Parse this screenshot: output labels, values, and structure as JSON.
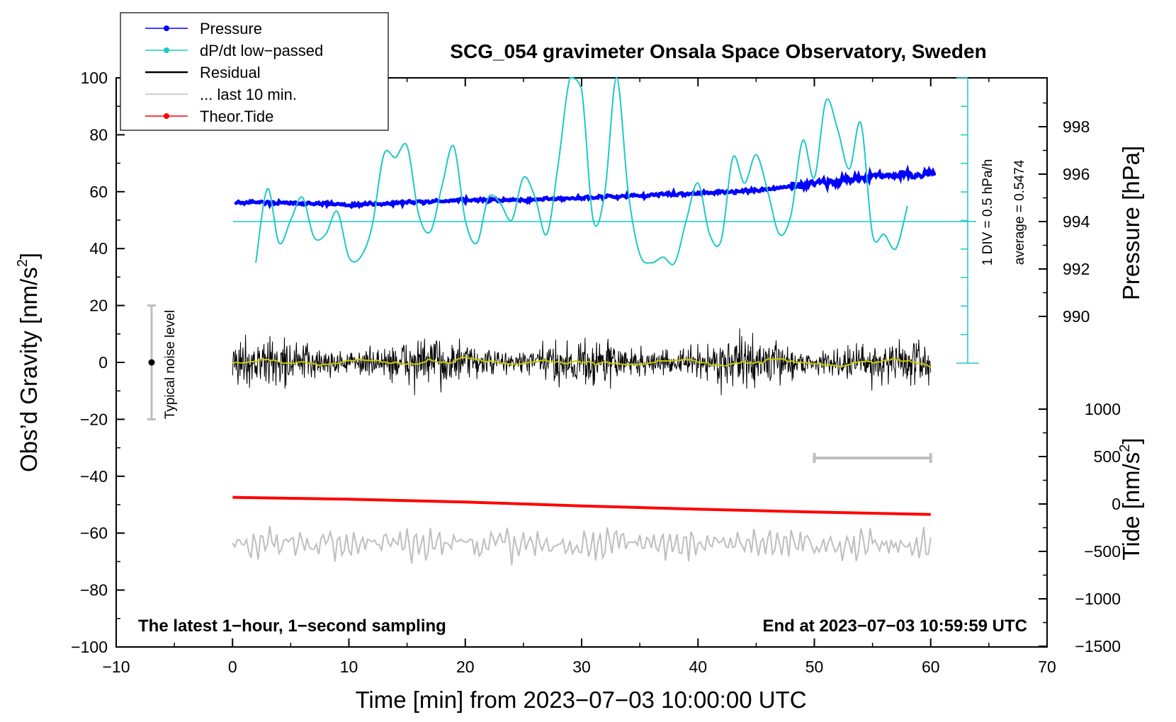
{
  "chart_data": {
    "type": "line",
    "title": "SCG_054 gravimeter Onsala Space Observatory, Sweden",
    "xlabel": "Time [min] from 2023−07−03 10:00:00 UTC",
    "ylabel": "Obs’d Gravity [nm/s",
    "ylabel_sup": "2",
    "ylabel_close": "]",
    "xlim": [
      -10,
      70
    ],
    "ylim": [
      -100,
      100
    ],
    "x_ticks": [
      "−10",
      "0",
      "10",
      "20",
      "30",
      "40",
      "50",
      "60",
      "70"
    ],
    "y_ticks": [
      "−100",
      "−80",
      "−60",
      "−40",
      "−20",
      "0",
      "20",
      "40",
      "60",
      "80",
      "100"
    ],
    "right_pressure_axis": {
      "label": "Pressure [hPa]",
      "ticks": [
        "990",
        "992",
        "994",
        "996",
        "998"
      ]
    },
    "right_tide_axis": {
      "label": "Tide [nm/s",
      "label_sup": "2",
      "label_close": "]",
      "ticks": [
        "−1500",
        "−1000",
        "−500",
        "0",
        "500",
        "1000"
      ]
    },
    "legend": [
      {
        "name": "Pressure",
        "color": "#0000ff",
        "marker": true
      },
      {
        "name": "dP/dt low−passed",
        "color": "#1ec8c8",
        "marker": true
      },
      {
        "name": "Residual",
        "color": "#000000",
        "marker": false
      },
      {
        "name": "... last 10 min.",
        "color": "#bebebe",
        "marker": false
      },
      {
        "name": "Theor.Tide",
        "color": "#ff0000",
        "marker": true
      }
    ],
    "series": [
      {
        "name": "dP/dt low−passed",
        "color": "#1ec8c8",
        "x": [
          2,
          3,
          4,
          5,
          6,
          7,
          8,
          9,
          10,
          11,
          12,
          13,
          14,
          15,
          16,
          17,
          18,
          19,
          20,
          21,
          22,
          23,
          24,
          25,
          26,
          27,
          28,
          29,
          30,
          31,
          32,
          33,
          34,
          35,
          36,
          37,
          38,
          39,
          40,
          41,
          42,
          43,
          44,
          45,
          46,
          47,
          48,
          49,
          50,
          51,
          52,
          53,
          54,
          55,
          56,
          57,
          58
        ],
        "y": [
          35,
          61,
          42,
          50,
          58,
          44,
          45,
          53,
          37,
          37,
          48,
          73,
          72,
          76,
          52,
          46,
          62,
          76,
          50,
          42,
          58,
          56,
          50,
          65,
          58,
          45,
          70,
          100,
          96,
          50,
          60,
          100,
          60,
          38,
          35,
          37,
          35,
          50,
          63,
          45,
          43,
          72,
          63,
          73,
          60,
          45,
          52,
          78,
          65,
          92,
          82,
          68,
          84,
          45,
          45,
          40,
          55
        ]
      },
      {
        "name": "Pressure",
        "color": "#0000ff",
        "x": [
          0,
          5,
          10,
          15,
          20,
          25,
          30,
          35,
          40,
          45,
          50,
          55,
          60
        ],
        "y": [
          994.8,
          994.8,
          994.7,
          994.8,
          994.9,
          994.9,
          995.0,
          995.1,
          995.2,
          995.3,
          995.6,
          995.9,
          996.0
        ]
      },
      {
        "name": "Residual",
        "color": "#000000",
        "x": [
          0,
          60
        ],
        "y": [
          0,
          0
        ]
      },
      {
        "name": "Theor.Tide",
        "color": "#ff0000",
        "x": [
          0,
          10,
          20,
          30,
          40,
          50,
          60
        ],
        "y": [
          70,
          50,
          20,
          -20,
          -55,
          -85,
          -110
        ]
      }
    ],
    "annotations": {
      "noise_label": "Typical noise level",
      "noise_range": [
        -20,
        20
      ],
      "div_note": "1 DIV = 0.5 hPa/h",
      "average_note": "average = 0.5474",
      "last10_range": [
        50,
        60
      ],
      "bottom_left": "The latest 1−hour, 1−second sampling",
      "bottom_right": "End at 2023−07−03 10:59:59 UTC"
    }
  }
}
